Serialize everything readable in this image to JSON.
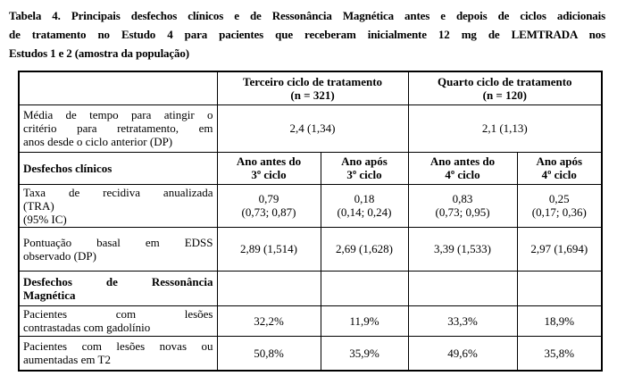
{
  "title": {
    "lines": [
      "Tabela 4. Principais desfechos clínicos e de Ressonância Magnética antes e depois de ciclos adicionais",
      "de tratamento no Estudo 4 para pacientes que receberam inicialmente 12 mg de LEMTRADA nos",
      "Estudos 1 e 2 (amostra da população)"
    ]
  },
  "table": {
    "header": {
      "third_cycle": [
        "Terceiro ciclo de tratamento",
        "(n = 321)"
      ],
      "fourth_cycle": [
        "Quarto ciclo de tratamento",
        "(n = 120)"
      ]
    },
    "retreatment_row": {
      "label": [
        "Média de tempo para atingir o",
        "critério para retratamento, em",
        "anos desde o ciclo anterior (DP)"
      ],
      "third_value": "2,4 (1,34)",
      "fourth_value": "2,1 (1,13)"
    },
    "clinical_section": {
      "title": "Desfechos clínicos",
      "columns": [
        [
          "Ano antes do",
          "3º ciclo"
        ],
        [
          "Ano após",
          "3º ciclo"
        ],
        [
          "Ano antes do",
          "4º ciclo"
        ],
        [
          "Ano após",
          "4º ciclo"
        ]
      ]
    },
    "arr_row": {
      "label": [
        "Taxa de recidiva anualizada",
        "(TRA)",
        "(95% IC)"
      ],
      "values": [
        [
          "0,79",
          "(0,73; 0,87)"
        ],
        [
          "0,18",
          "(0,14; 0,24)"
        ],
        [
          "0,83",
          "(0,73; 0,95)"
        ],
        [
          "0,25",
          "(0,17; 0,36)"
        ]
      ]
    },
    "edss_row": {
      "label": [
        "Pontuação basal em EDSS",
        "observado (DP)"
      ],
      "values": [
        "2,89 (1,514)",
        "2,69 (1,628)",
        "3,39 (1,533)",
        "2,97 (1,694)"
      ]
    },
    "mri_section": {
      "title": [
        "Desfechos de Ressonância",
        "Magnética"
      ]
    },
    "gadolinium_row": {
      "label": [
        "Pacientes com lesões",
        "contrastadas com gadolínio"
      ],
      "values": [
        "32,2%",
        "11,9%",
        "33,3%",
        "18,9%"
      ]
    },
    "t2_row": {
      "label": [
        "Pacientes com lesões novas ou",
        "aumentadas em T2"
      ],
      "values": [
        "50,8%",
        "35,9%",
        "49,6%",
        "35,8%"
      ]
    }
  }
}
